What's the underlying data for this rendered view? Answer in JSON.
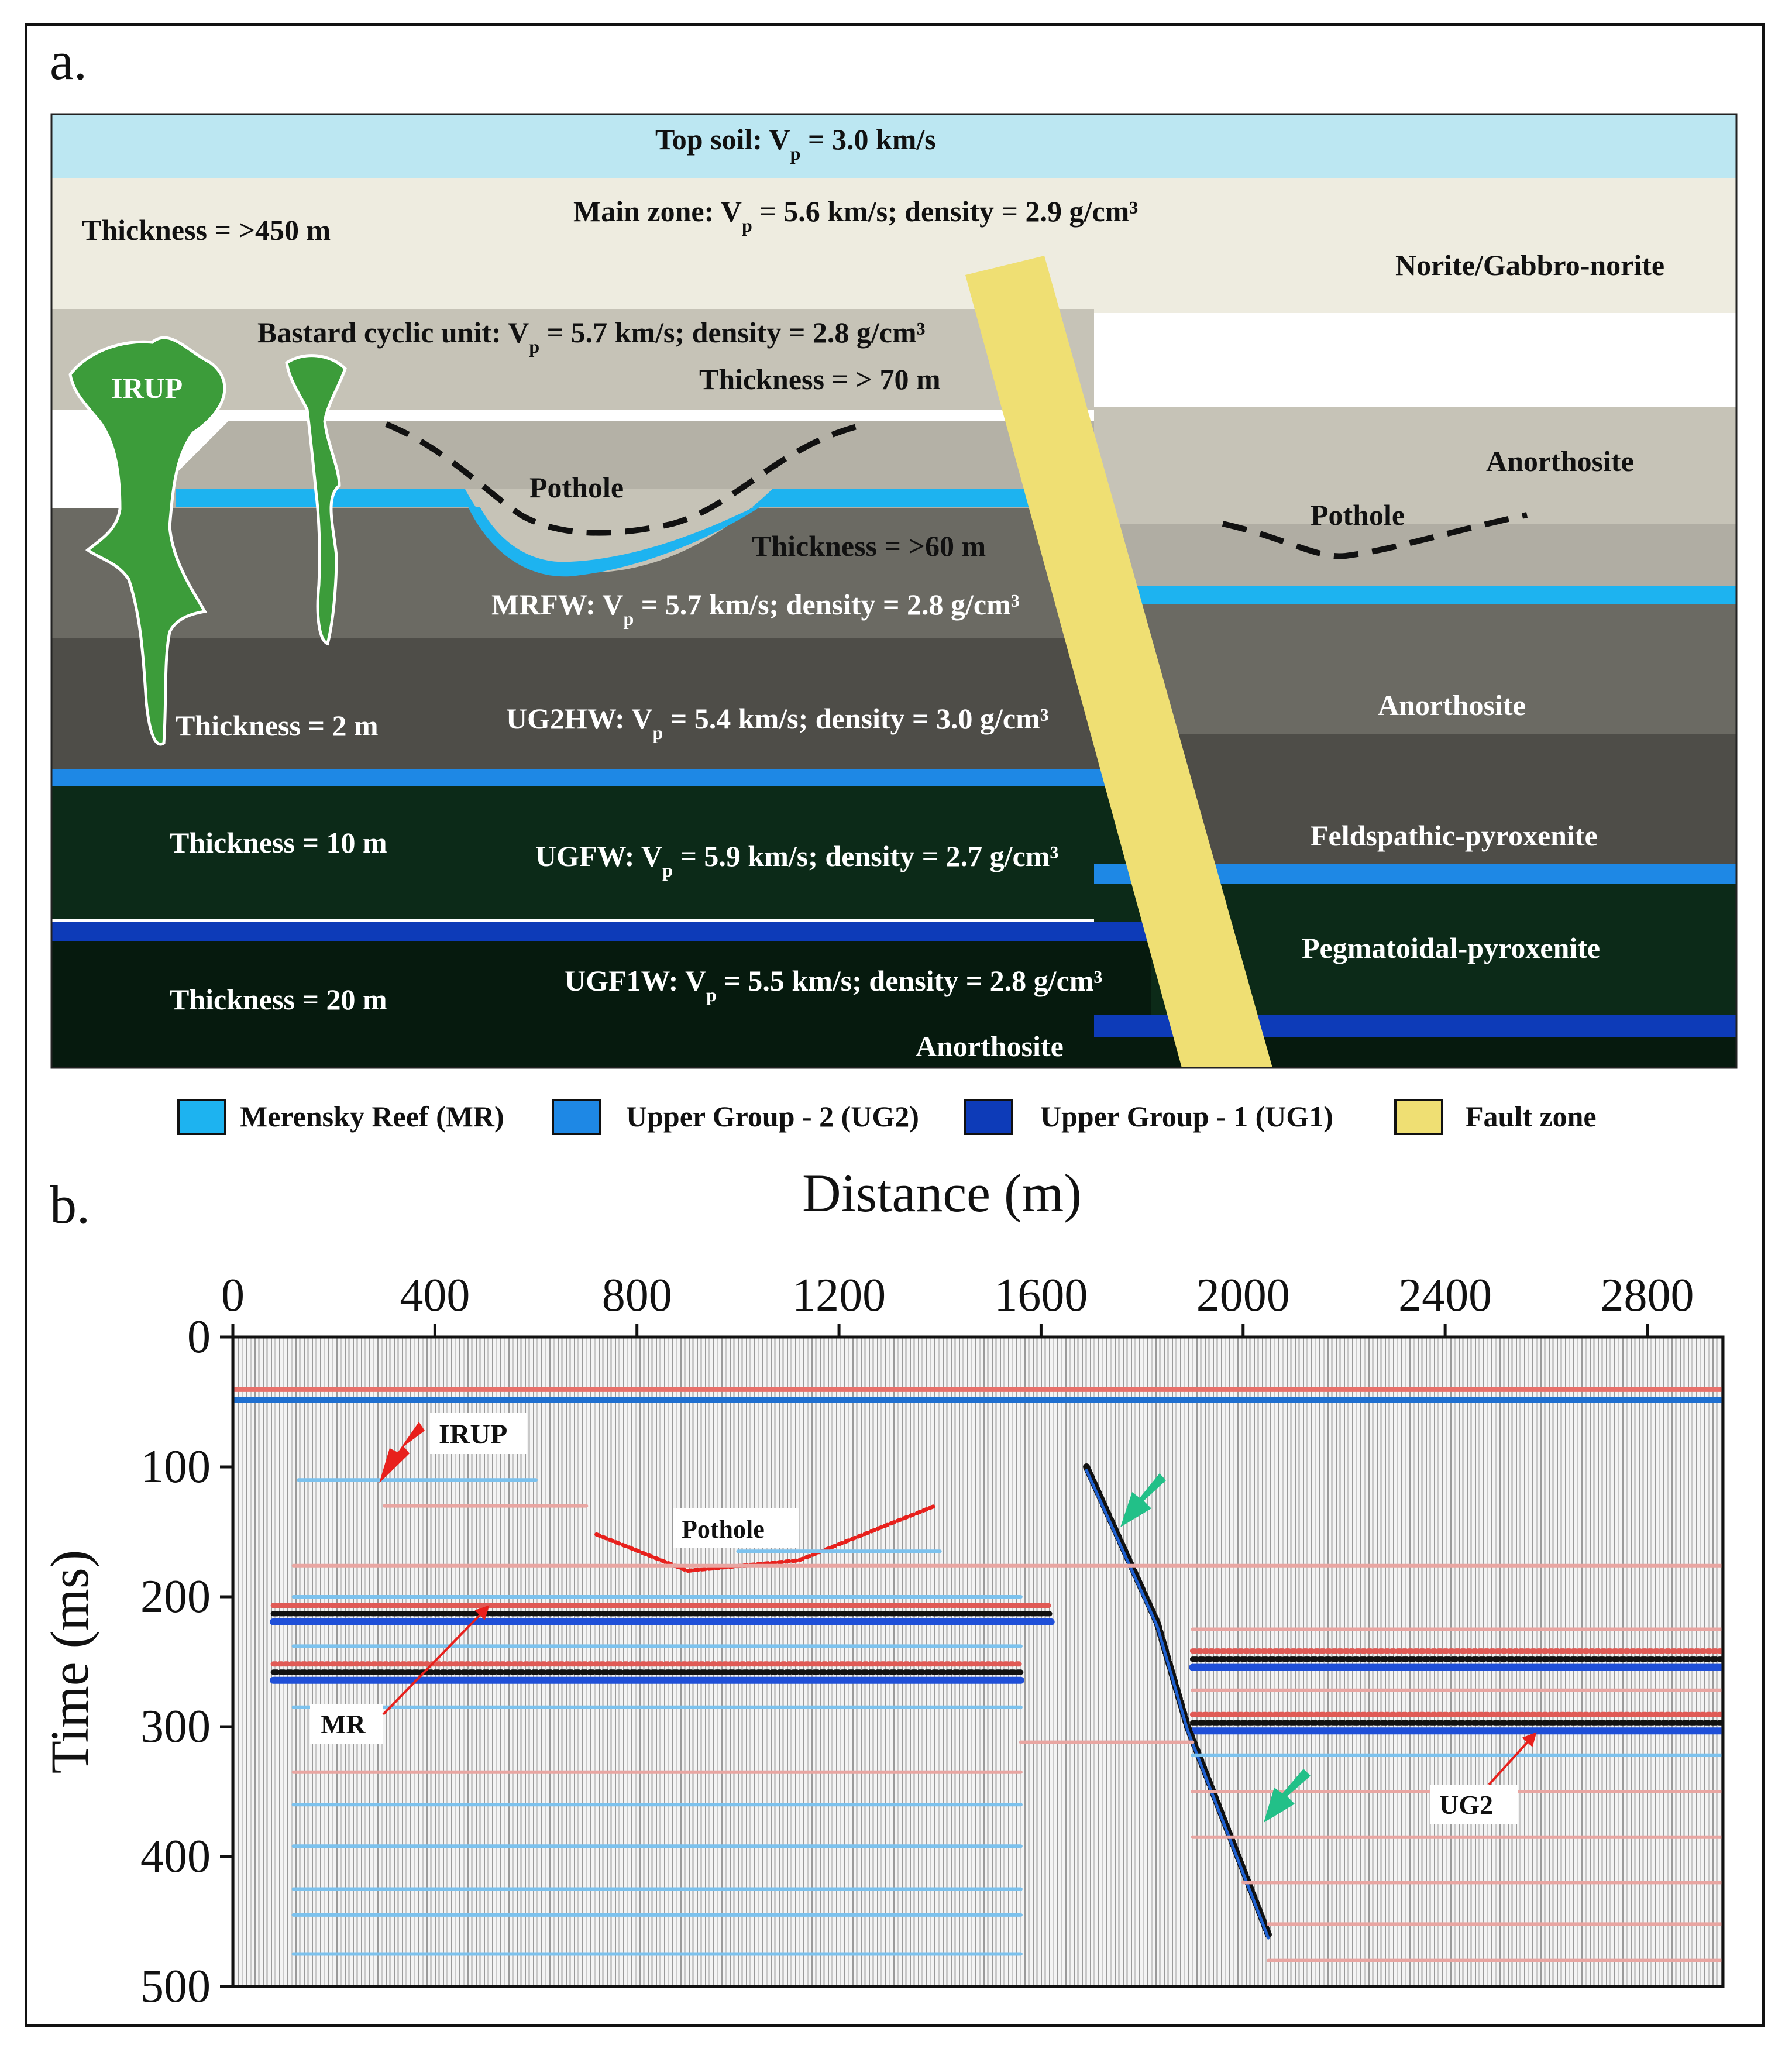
{
  "panel_a": {
    "letter": "a.",
    "labels": {
      "top_soil_pre": "Top soil: V",
      "top_soil_post": " = 3.0 km/s",
      "main_zone_pre": "Main zone: V",
      "main_zone_post": " = 5.6 km/s; density = 2.9 g/cm³",
      "thickness_main": "Thickness =  >450 m",
      "norite": "Norite/Gabbro-norite",
      "bastard_pre": "Bastard cyclic unit: V",
      "bastard_post": " = 5.7 km/s; density = 2.8 g/cm³",
      "thickness_bastard": "Thickness = > 70 m",
      "irup": "IRUP",
      "pothole_left": "Pothole",
      "pothole_right": "Pothole",
      "anorthosite_1": "Anorthosite",
      "thickness_60": "Thickness = >60 m",
      "mrfw_pre": "MRFW: V",
      "mrfw_post": " = 5.7 km/s; density = 2.8 g/cm³",
      "anorthosite_2": "Anorthosite",
      "thickness_2": "Thickness = 2 m",
      "ug2hw_pre": "UG2HW: V",
      "ug2hw_post": " = 5.4 km/s; density = 3.0 g/cm³",
      "feldspathic": "Feldspathic-pyroxenite",
      "thickness_10": "Thickness = 10 m",
      "ugfw_pre": "UGFW: V",
      "ugfw_post": " = 5.9 km/s; density = 2.7 g/cm³",
      "pegmatoidal": "Pegmatoidal-pyroxenite",
      "thickness_20": "Thickness = 20 m",
      "ugf1w_pre": "UGF1W: V",
      "ugf1w_post": " = 5.5 km/s; density = 2.8 g/cm³",
      "anorthosite_3": "Anorthosite",
      "sub_p": "p"
    },
    "legend": [
      {
        "label": "Merensky Reef (MR)",
        "color": "#1db3f0"
      },
      {
        "label": "Upper Group - 2 (UG2)",
        "color": "#1e88e5"
      },
      {
        "label": "Upper Group - 1 (UG1)",
        "color": "#0d3bb8"
      },
      {
        "label": "Fault zone",
        "color": "#efdf73"
      }
    ],
    "colors": {
      "top_soil": "#bce7f2",
      "main_zone": "#eeece0",
      "bastard": "#c6c3b7",
      "mrfw": "#6b6a63",
      "ug2hw": "#4e4d48",
      "ugfw": "#0c2a18",
      "ugf1w": "#061a0e",
      "irup": "#3c9c3a",
      "fault": "#efdf73"
    }
  },
  "panel_b": {
    "letter": "b.",
    "chart_data": {
      "type": "heatmap",
      "title": "Distance (m)",
      "xlabel": "Distance (m)",
      "ylabel": "Time (ms)",
      "xlim": [
        0,
        2950
      ],
      "ylim": [
        500,
        0
      ],
      "xticks": [
        "0",
        "400",
        "800",
        "1200",
        "1600",
        "2000",
        "2400",
        "2800"
      ],
      "xtick_values": [
        0,
        400,
        800,
        1200,
        1600,
        2000,
        2400,
        2800
      ],
      "yticks": [
        "0",
        "100",
        "200",
        "300",
        "400",
        "500"
      ],
      "ytick_values": [
        0,
        100,
        200,
        300,
        400,
        500
      ],
      "reflectors": [
        {
          "name": "direct-arrival",
          "x": [
            0,
            2950
          ],
          "t": [
            45,
            45
          ]
        },
        {
          "name": "MR-west",
          "x": [
            80,
            1620
          ],
          "t": [
            213,
            213
          ]
        },
        {
          "name": "UG2-west",
          "x": [
            80,
            1560
          ],
          "t": [
            258,
            258
          ]
        },
        {
          "name": "MR-east",
          "x": [
            1900,
            2950
          ],
          "t": [
            248,
            248
          ]
        },
        {
          "name": "UG2-east",
          "x": [
            1900,
            2950
          ],
          "t": [
            297,
            297
          ]
        },
        {
          "name": "pothole",
          "x": [
            720,
            900,
            1120,
            1390
          ],
          "t": [
            152,
            180,
            172,
            130
          ]
        },
        {
          "name": "fault-reflection",
          "x": [
            1690,
            1830,
            1890,
            2050
          ],
          "t": [
            100,
            220,
            300,
            460
          ]
        }
      ],
      "annotations": [
        {
          "text": "IRUP",
          "x": 475,
          "t": 76
        },
        {
          "text": "Pothole",
          "x": 1000,
          "t": 150
        },
        {
          "text": "MR",
          "x": 230,
          "t": 305
        },
        {
          "text": "UG2",
          "x": 2450,
          "t": 357
        }
      ]
    }
  }
}
